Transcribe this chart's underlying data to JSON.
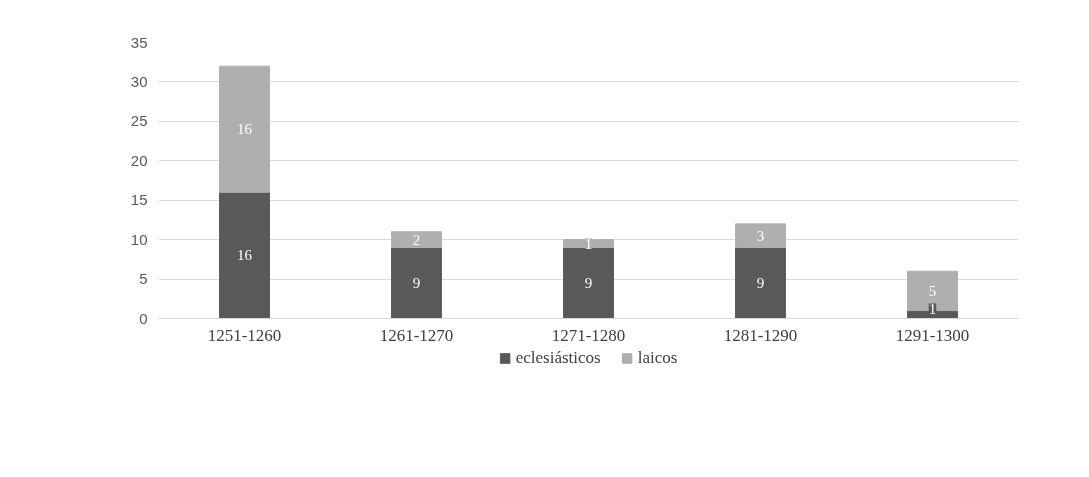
{
  "chart_data": {
    "type": "bar",
    "stacked": true,
    "categories": [
      "1251-1260",
      "1261-1270",
      "1271-1280",
      "1281-1290",
      "1291-1300"
    ],
    "series": [
      {
        "name": "eclesiásticos",
        "color": "#595959",
        "values": [
          16,
          9,
          9,
          9,
          1
        ]
      },
      {
        "name": "laicos",
        "color": "#afafaf",
        "values": [
          16,
          2,
          1,
          3,
          5
        ]
      }
    ],
    "ylim": [
      0,
      35
    ],
    "yticks": [
      0,
      5,
      10,
      15,
      20,
      25,
      30,
      35
    ],
    "grid": "y",
    "legend": "bottom",
    "data_labels": true
  }
}
